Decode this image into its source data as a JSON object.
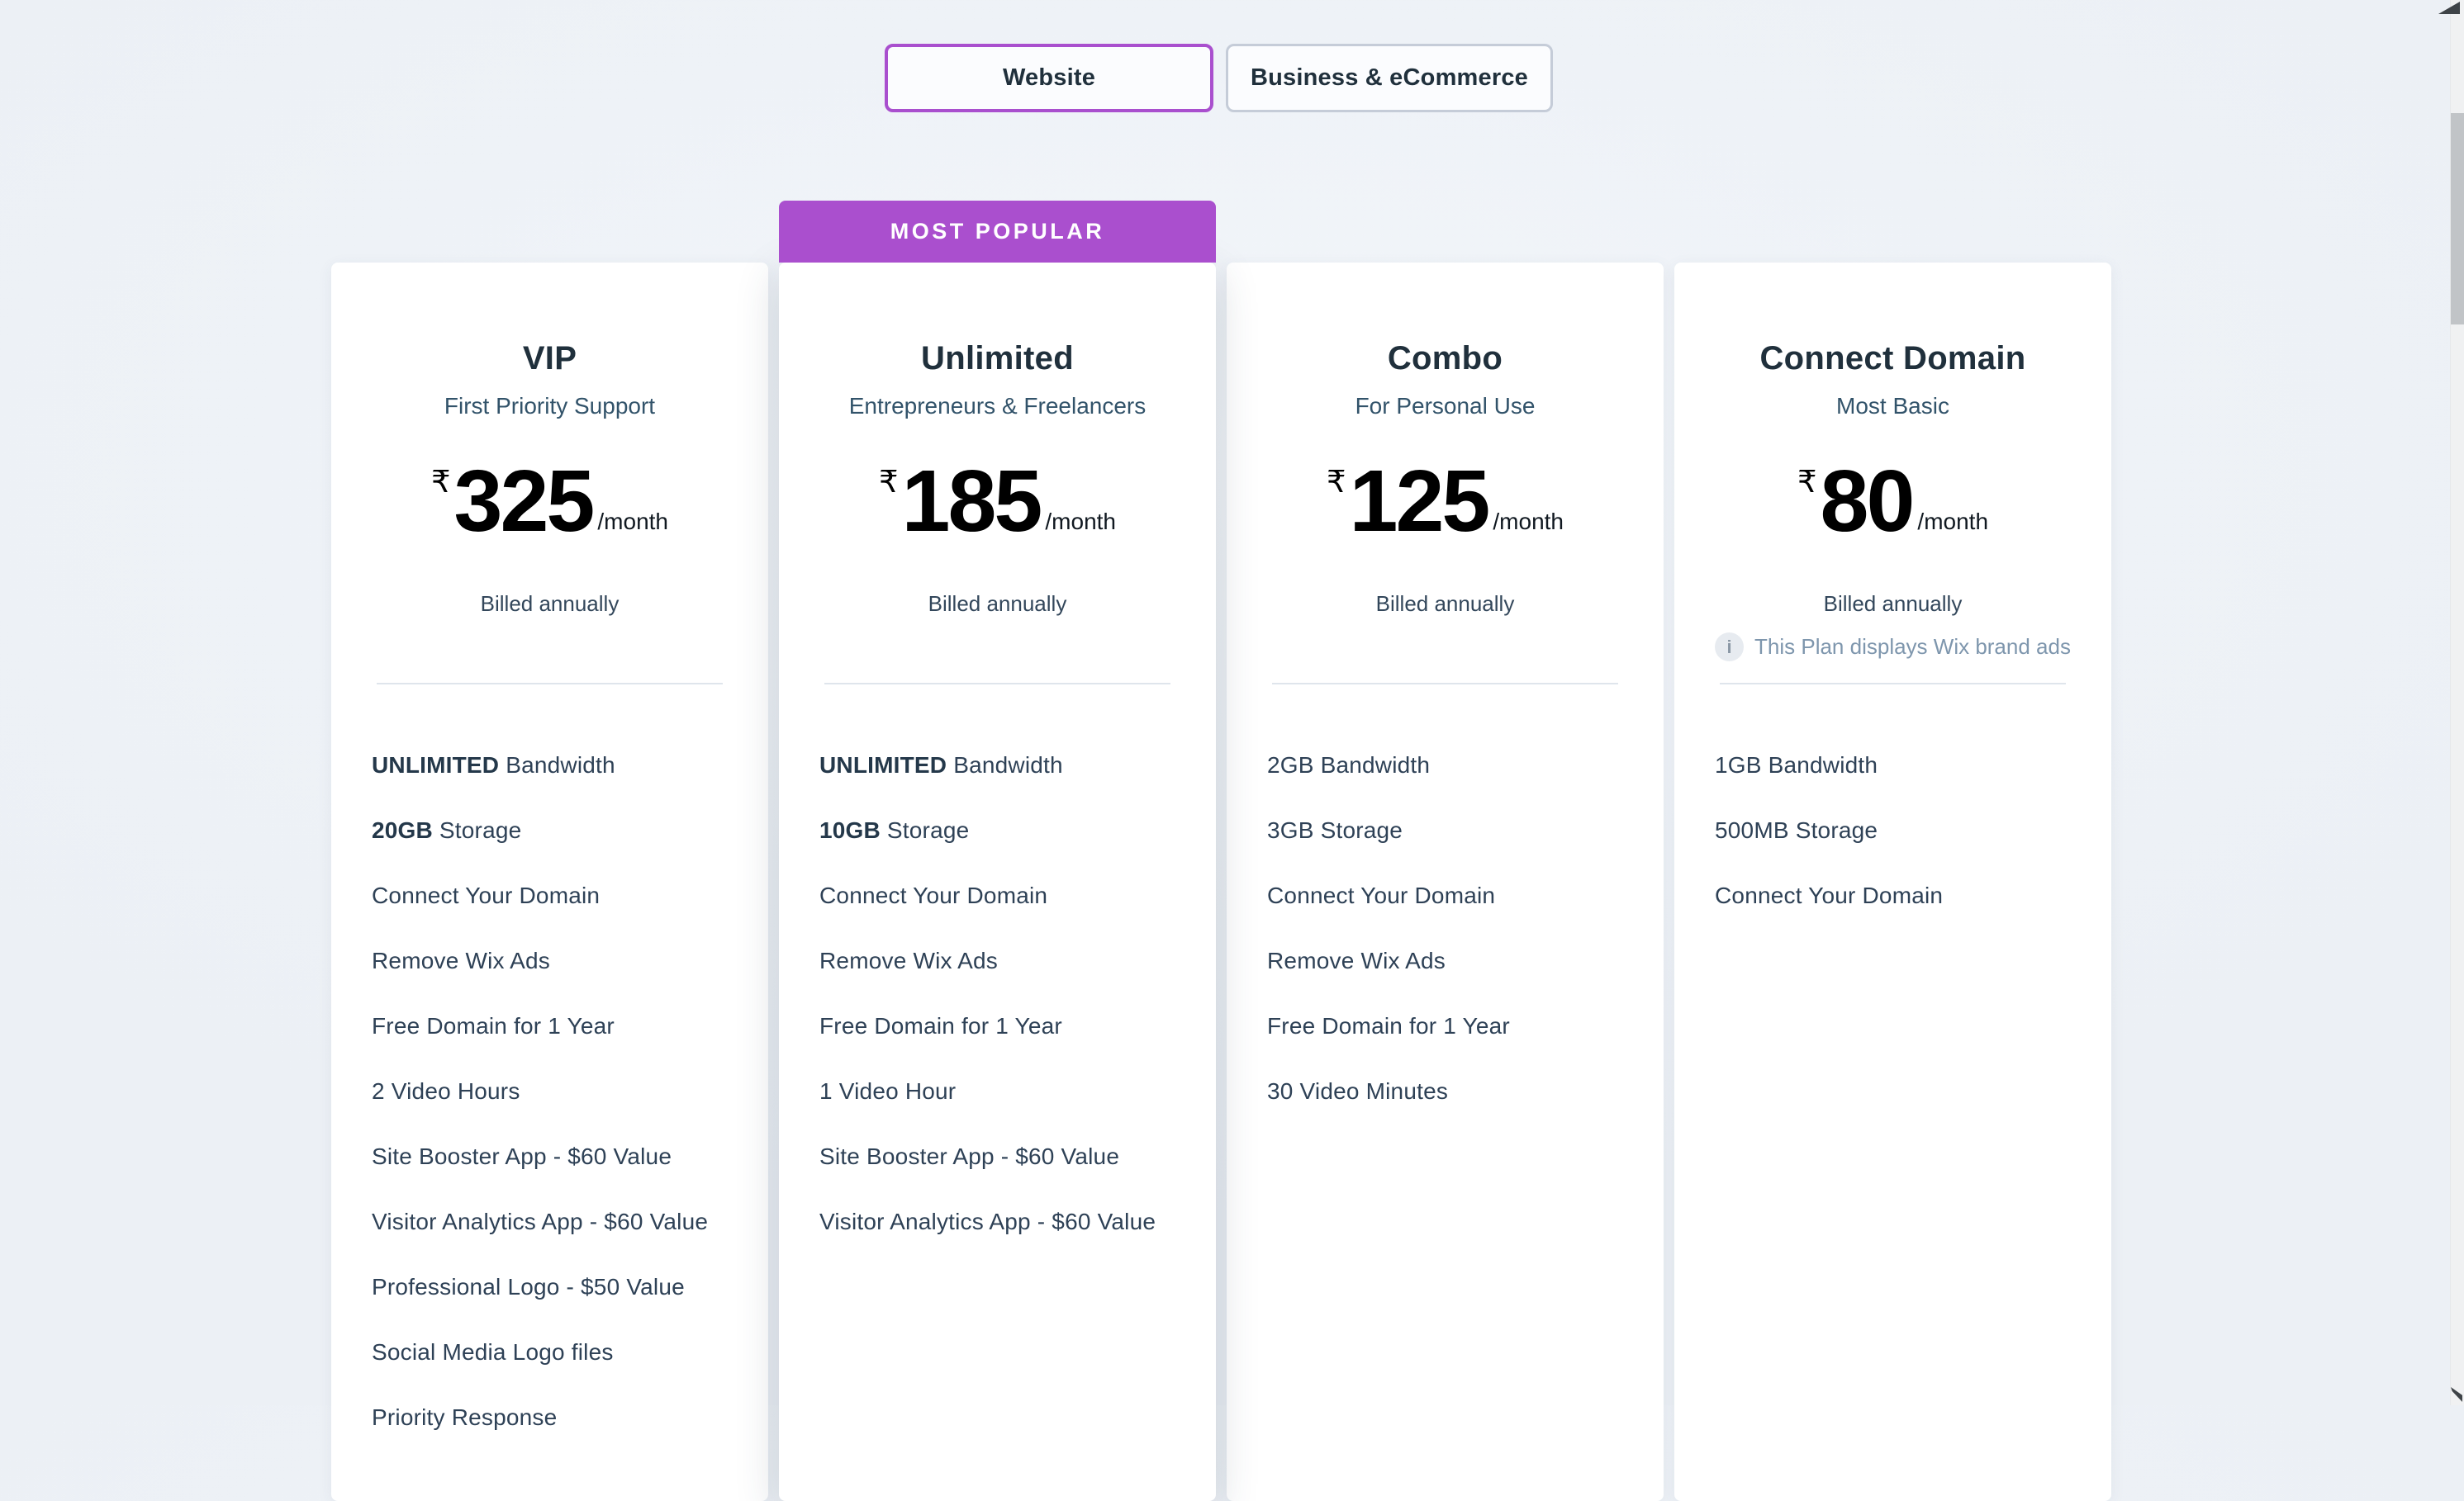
{
  "colors": {
    "accent_purple": "#aa4fce",
    "page_background": "#eef2f7",
    "card_background": "#ffffff",
    "title_text": "#20303c",
    "feature_text": "#2e4156",
    "note_text": "#7e96ad",
    "toggle_unselected_border": "#c5ccd8",
    "scrollbar_thumb": "#c1c4c7"
  },
  "view_toggle": {
    "options": [
      {
        "label": "Website",
        "selected": true
      },
      {
        "label": "Business & eCommerce",
        "selected": false
      }
    ]
  },
  "most_popular_badge": "MOST POPULAR",
  "icons": {
    "info_icon_glyph": "i"
  },
  "plans": [
    {
      "name": "VIP",
      "tagline": "First Priority Support",
      "currency": "₹",
      "price": "325",
      "period": "/month",
      "billing": "Billed annually",
      "most_popular": false,
      "ad_note": null,
      "features": [
        {
          "strong": "UNLIMITED",
          "text": "Bandwidth"
        },
        {
          "strong": "20GB",
          "text": "Storage"
        },
        {
          "strong": "",
          "text": "Connect Your Domain"
        },
        {
          "strong": "",
          "text": "Remove Wix Ads"
        },
        {
          "strong": "",
          "text": "Free Domain for 1 Year"
        },
        {
          "strong": "",
          "text": "2 Video Hours"
        },
        {
          "strong": "",
          "text": "Site Booster App - $60 Value"
        },
        {
          "strong": "",
          "text": "Visitor Analytics App - $60 Value"
        },
        {
          "strong": "",
          "text": "Professional Logo - $50 Value"
        },
        {
          "strong": "",
          "text": "Social Media Logo files"
        },
        {
          "strong": "",
          "text": "Priority Response"
        }
      ]
    },
    {
      "name": "Unlimited",
      "tagline": "Entrepreneurs & Freelancers",
      "currency": "₹",
      "price": "185",
      "period": "/month",
      "billing": "Billed annually",
      "most_popular": true,
      "ad_note": null,
      "features": [
        {
          "strong": "UNLIMITED",
          "text": "Bandwidth"
        },
        {
          "strong": "10GB",
          "text": "Storage"
        },
        {
          "strong": "",
          "text": "Connect Your Domain"
        },
        {
          "strong": "",
          "text": "Remove Wix Ads"
        },
        {
          "strong": "",
          "text": "Free Domain for 1 Year"
        },
        {
          "strong": "",
          "text": "1 Video Hour"
        },
        {
          "strong": "",
          "text": "Site Booster App - $60 Value"
        },
        {
          "strong": "",
          "text": "Visitor Analytics App - $60 Value"
        }
      ]
    },
    {
      "name": "Combo",
      "tagline": "For Personal Use",
      "currency": "₹",
      "price": "125",
      "period": "/month",
      "billing": "Billed annually",
      "most_popular": false,
      "ad_note": null,
      "features": [
        {
          "strong": "",
          "text": "2GB Bandwidth"
        },
        {
          "strong": "",
          "text": "3GB Storage"
        },
        {
          "strong": "",
          "text": "Connect Your Domain"
        },
        {
          "strong": "",
          "text": "Remove Wix Ads"
        },
        {
          "strong": "",
          "text": "Free Domain for 1 Year"
        },
        {
          "strong": "",
          "text": "30 Video Minutes"
        }
      ]
    },
    {
      "name": "Connect Domain",
      "tagline": "Most Basic",
      "currency": "₹",
      "price": "80",
      "period": "/month",
      "billing": "Billed annually",
      "most_popular": false,
      "ad_note": "This Plan displays Wix brand ads",
      "features": [
        {
          "strong": "",
          "text": "1GB Bandwidth"
        },
        {
          "strong": "",
          "text": "500MB Storage"
        },
        {
          "strong": "",
          "text": "Connect Your Domain"
        }
      ]
    }
  ]
}
